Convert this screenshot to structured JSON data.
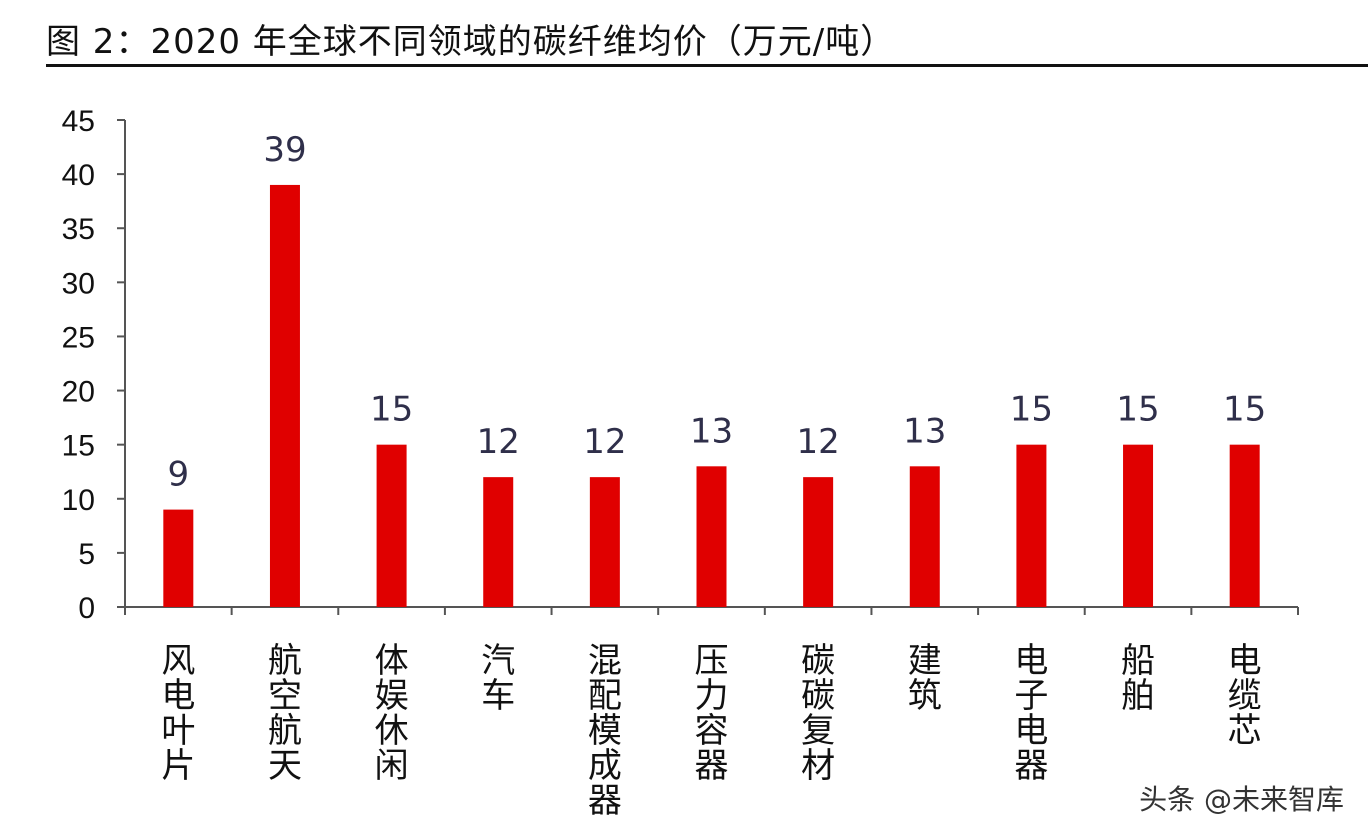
{
  "chart_data": {
    "type": "bar",
    "title": "图 2：2020 年全球不同领域的碳纤维均价（万元/吨）",
    "categories": [
      "风电叶片",
      "航空航天",
      "体娱休闲",
      "汽车",
      "混配模成器",
      "压力容器",
      "碳碳复材",
      "建筑",
      "电子电器",
      "船舶",
      "电缆芯"
    ],
    "values": [
      9,
      39,
      15,
      12,
      12,
      13,
      12,
      13,
      15,
      15,
      15
    ],
    "data_labels": [
      "9",
      "39",
      "15",
      "12",
      "12",
      "13",
      "12",
      "13",
      "15",
      "15",
      "15"
    ],
    "ylim": [
      0,
      45
    ],
    "yticks": [
      "0",
      "5",
      "10",
      "15",
      "20",
      "25",
      "30",
      "35",
      "40",
      "45"
    ],
    "xlabel": "",
    "ylabel": "",
    "bar_color": "#e00000",
    "grid": false,
    "legend": "none"
  },
  "watermark": "头条 @未来智库"
}
